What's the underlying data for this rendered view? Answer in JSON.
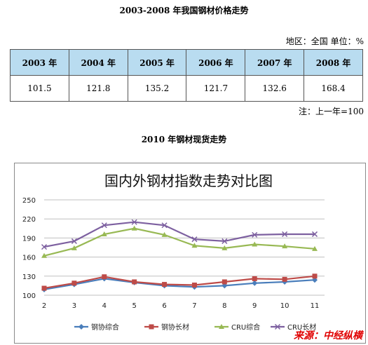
{
  "doc": {
    "title": "2003-2008 年我国钢材价格走势",
    "meta": "地区：全国 单位：%",
    "note": "注：上一年=100",
    "section2_title": "2010 年钢材现货走势"
  },
  "price_table": {
    "headers": [
      "2003 年",
      "2004 年",
      "2005 年",
      "2006 年",
      "2007 年",
      "2008 年"
    ],
    "values": [
      "101.5",
      "121.8",
      "135.2",
      "121.7",
      "132.6",
      "168.4"
    ]
  },
  "chart_data": {
    "type": "line",
    "title": "国内外钢材指数走势对比图",
    "x": [
      2,
      3,
      4,
      5,
      6,
      7,
      8,
      9,
      10,
      11
    ],
    "ylim": [
      100,
      250
    ],
    "yticks": [
      100,
      130,
      160,
      190,
      220,
      250
    ],
    "grid": true,
    "legend": "bottom",
    "series": [
      {
        "name": "钢协综合",
        "color": "#4a7ebb",
        "marker": "diamond",
        "values": [
          109,
          117,
          126,
          120,
          115,
          113,
          115,
          119,
          121,
          124
        ]
      },
      {
        "name": "钢协长材",
        "color": "#be4b48",
        "marker": "square",
        "values": [
          111,
          119,
          129,
          121,
          117,
          116,
          121,
          126,
          125,
          130
        ]
      },
      {
        "name": "CRU综合",
        "color": "#98b954",
        "marker": "triangle",
        "values": [
          162,
          174,
          196,
          205,
          195,
          178,
          174,
          180,
          177,
          173
        ]
      },
      {
        "name": "CRU长材",
        "color": "#7d60a0",
        "marker": "x",
        "values": [
          176,
          185,
          210,
          215,
          210,
          188,
          185,
          195,
          196,
          196
        ]
      }
    ]
  },
  "source": "来源：中经纵横"
}
